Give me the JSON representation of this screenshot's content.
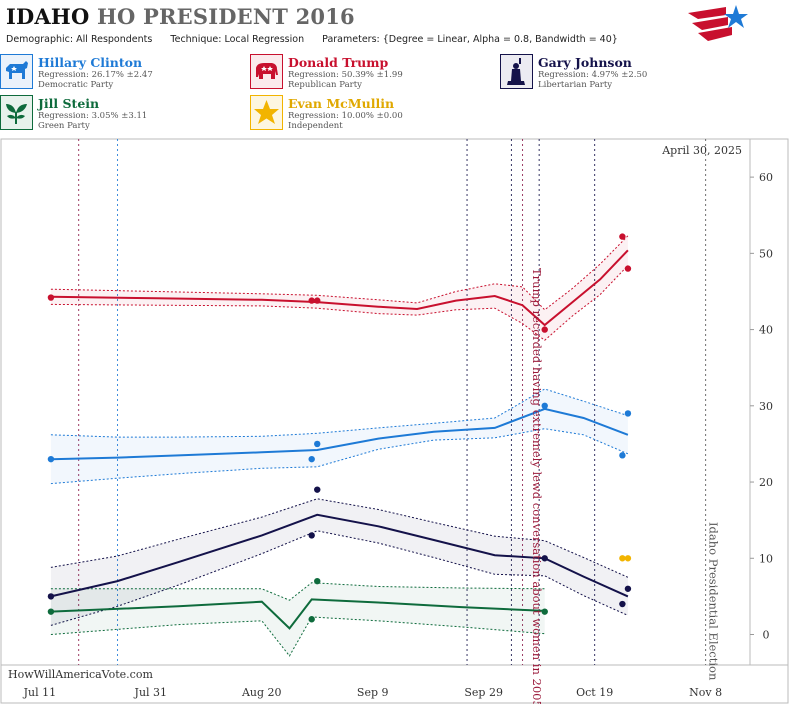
{
  "header": {
    "state": "IDAHO",
    "title_rest": "HO PRESIDENT 2016",
    "demographic_label": "Demographic:",
    "demographic_value": "All Respondents",
    "technique_label": "Technique:",
    "technique_value": "Local Regression",
    "parameters_label": "Parameters:",
    "parameters_value": "{Degree = Linear, Alpha = 0.8, Bandwidth = 40}"
  },
  "candidates": [
    {
      "name": "Hillary Clinton",
      "regression": "Regression: 26.17% ±2.47",
      "party": "Democratic Party",
      "color": "#1e7ad6",
      "icon": "donkey-icon"
    },
    {
      "name": "Donald Trump",
      "regression": "Regression: 50.39% ±1.99",
      "party": "Republican Party",
      "color": "#c8102e",
      "icon": "elephant-icon"
    },
    {
      "name": "Gary Johnson",
      "regression": "Regression: 4.97% ±2.50",
      "party": "Libertarian Party",
      "color": "#14124a",
      "icon": "liberty-statue-icon"
    },
    {
      "name": "Jill Stein",
      "regression": "Regression: 3.05% ±3.11",
      "party": "Green Party",
      "color": "#0e6b3c",
      "icon": "leaf-icon"
    },
    {
      "name": "Evan McMullin",
      "regression": "Regression: 10.00% ±0.00",
      "party": "Independent",
      "color": "#f2b400",
      "icon": "star-icon"
    }
  ],
  "chart_data": {
    "type": "line",
    "date_label": "April 30, 2025",
    "watermark": "HowWillAmericaVote.com",
    "x_ticks": [
      "Jul 11",
      "Jul 31",
      "Aug 20",
      "Sep 9",
      "Sep 29",
      "Oct 19",
      "Nov 8"
    ],
    "x_range": [
      "2016-07-04",
      "2016-11-16"
    ],
    "y_ticks": [
      0,
      10,
      20,
      30,
      40,
      50,
      60
    ],
    "ylim": [
      -4,
      65
    ],
    "annotations": [
      {
        "date": "2016-10-07",
        "text": "Trump recorded having extremely lewd conversation about women in 2005",
        "color": "#9b1b3c"
      },
      {
        "date": "2016-11-08",
        "text": "Idaho Presidential Election",
        "color": "#555555"
      }
    ],
    "event_lines": [
      {
        "date": "2016-07-18",
        "color": "#8b1a4a"
      },
      {
        "date": "2016-07-25",
        "color": "#1e7ad6"
      },
      {
        "date": "2016-09-26",
        "color": "#14124a"
      },
      {
        "date": "2016-10-04",
        "color": "#14124a"
      },
      {
        "date": "2016-10-06",
        "color": "#8b1a4a"
      },
      {
        "date": "2016-10-09",
        "color": "#14124a"
      },
      {
        "date": "2016-10-19",
        "color": "#14124a"
      },
      {
        "date": "2016-11-08",
        "color": "#555555"
      }
    ],
    "series": [
      {
        "name": "Donald Trump",
        "color": "#c8102e",
        "points": [
          [
            "2016-07-13",
            44.2
          ],
          [
            "2016-08-29",
            43.8
          ],
          [
            "2016-08-30",
            43.8
          ],
          [
            "2016-10-10",
            40.0
          ],
          [
            "2016-10-24",
            52.2
          ],
          [
            "2016-10-25",
            48.0
          ]
        ],
        "trend": [
          [
            "2016-07-13",
            44.3
          ],
          [
            "2016-08-01",
            44.1
          ],
          [
            "2016-08-20",
            43.9
          ],
          [
            "2016-08-30",
            43.6
          ],
          [
            "2016-09-10",
            43.0
          ],
          [
            "2016-09-17",
            42.7
          ],
          [
            "2016-09-24",
            43.8
          ],
          [
            "2016-10-01",
            44.4
          ],
          [
            "2016-10-06",
            43.2
          ],
          [
            "2016-10-10",
            40.6
          ],
          [
            "2016-10-15",
            43.6
          ],
          [
            "2016-10-20",
            46.6
          ],
          [
            "2016-10-25",
            50.4
          ]
        ],
        "upper": [
          [
            "2016-07-13",
            45.3
          ],
          [
            "2016-08-01",
            45.0
          ],
          [
            "2016-08-20",
            44.7
          ],
          [
            "2016-08-30",
            44.5
          ],
          [
            "2016-09-10",
            43.9
          ],
          [
            "2016-09-17",
            43.5
          ],
          [
            "2016-09-24",
            45.0
          ],
          [
            "2016-10-01",
            46.0
          ],
          [
            "2016-10-06",
            45.6
          ],
          [
            "2016-10-10",
            42.6
          ],
          [
            "2016-10-15",
            45.4
          ],
          [
            "2016-10-20",
            48.6
          ],
          [
            "2016-10-25",
            52.3
          ]
        ],
        "lower": [
          [
            "2016-07-13",
            43.3
          ],
          [
            "2016-08-01",
            43.2
          ],
          [
            "2016-08-20",
            43.1
          ],
          [
            "2016-08-30",
            42.8
          ],
          [
            "2016-09-10",
            42.1
          ],
          [
            "2016-09-17",
            41.9
          ],
          [
            "2016-09-24",
            42.6
          ],
          [
            "2016-10-01",
            42.8
          ],
          [
            "2016-10-06",
            40.8
          ],
          [
            "2016-10-10",
            38.6
          ],
          [
            "2016-10-15",
            41.8
          ],
          [
            "2016-10-20",
            44.6
          ],
          [
            "2016-10-25",
            48.4
          ]
        ]
      },
      {
        "name": "Hillary Clinton",
        "color": "#1e7ad6",
        "points": [
          [
            "2016-07-13",
            23.0
          ],
          [
            "2016-08-29",
            23.0
          ],
          [
            "2016-08-30",
            25.0
          ],
          [
            "2016-10-10",
            30.0
          ],
          [
            "2016-10-24",
            23.5
          ],
          [
            "2016-10-25",
            29.0
          ]
        ],
        "trend": [
          [
            "2016-07-13",
            23.0
          ],
          [
            "2016-07-25",
            23.2
          ],
          [
            "2016-08-05",
            23.5
          ],
          [
            "2016-08-20",
            23.9
          ],
          [
            "2016-08-30",
            24.2
          ],
          [
            "2016-09-10",
            25.7
          ],
          [
            "2016-09-20",
            26.6
          ],
          [
            "2016-10-01",
            27.1
          ],
          [
            "2016-10-10",
            29.6
          ],
          [
            "2016-10-17",
            28.4
          ],
          [
            "2016-10-25",
            26.2
          ]
        ],
        "upper": [
          [
            "2016-07-13",
            26.2
          ],
          [
            "2016-07-25",
            25.9
          ],
          [
            "2016-08-05",
            25.9
          ],
          [
            "2016-08-20",
            26.0
          ],
          [
            "2016-08-30",
            26.4
          ],
          [
            "2016-09-10",
            27.1
          ],
          [
            "2016-09-20",
            27.7
          ],
          [
            "2016-10-01",
            28.4
          ],
          [
            "2016-10-10",
            32.2
          ],
          [
            "2016-10-17",
            30.6
          ],
          [
            "2016-10-25",
            28.7
          ]
        ],
        "lower": [
          [
            "2016-07-13",
            19.8
          ],
          [
            "2016-07-25",
            20.5
          ],
          [
            "2016-08-05",
            21.1
          ],
          [
            "2016-08-20",
            21.8
          ],
          [
            "2016-08-30",
            22.0
          ],
          [
            "2016-09-10",
            24.3
          ],
          [
            "2016-09-20",
            25.5
          ],
          [
            "2016-10-01",
            25.8
          ],
          [
            "2016-10-10",
            27.0
          ],
          [
            "2016-10-17",
            26.2
          ],
          [
            "2016-10-25",
            23.7
          ]
        ]
      },
      {
        "name": "Gary Johnson",
        "color": "#14124a",
        "points": [
          [
            "2016-07-13",
            5.0
          ],
          [
            "2016-08-29",
            13.0
          ],
          [
            "2016-08-30",
            19.0
          ],
          [
            "2016-10-10",
            10.0
          ],
          [
            "2016-10-24",
            4.0
          ],
          [
            "2016-10-25",
            6.0
          ]
        ],
        "trend": [
          [
            "2016-07-13",
            5.0
          ],
          [
            "2016-07-25",
            7.0
          ],
          [
            "2016-08-05",
            9.5
          ],
          [
            "2016-08-20",
            13.0
          ],
          [
            "2016-08-30",
            15.7
          ],
          [
            "2016-09-10",
            14.2
          ],
          [
            "2016-09-20",
            12.4
          ],
          [
            "2016-10-01",
            10.4
          ],
          [
            "2016-10-10",
            10.0
          ],
          [
            "2016-10-17",
            7.6
          ],
          [
            "2016-10-25",
            5.0
          ]
        ],
        "upper": [
          [
            "2016-07-13",
            8.8
          ],
          [
            "2016-07-25",
            10.3
          ],
          [
            "2016-08-05",
            12.5
          ],
          [
            "2016-08-20",
            15.4
          ],
          [
            "2016-08-30",
            17.8
          ],
          [
            "2016-09-10",
            16.4
          ],
          [
            "2016-09-20",
            14.7
          ],
          [
            "2016-10-01",
            12.9
          ],
          [
            "2016-10-10",
            12.3
          ],
          [
            "2016-10-17",
            10.1
          ],
          [
            "2016-10-25",
            7.5
          ]
        ],
        "lower": [
          [
            "2016-07-13",
            1.2
          ],
          [
            "2016-07-25",
            3.7
          ],
          [
            "2016-08-05",
            6.5
          ],
          [
            "2016-08-20",
            10.6
          ],
          [
            "2016-08-30",
            13.6
          ],
          [
            "2016-09-10",
            12.0
          ],
          [
            "2016-09-20",
            10.1
          ],
          [
            "2016-10-01",
            7.9
          ],
          [
            "2016-10-10",
            7.7
          ],
          [
            "2016-10-17",
            5.1
          ],
          [
            "2016-10-25",
            2.5
          ]
        ]
      },
      {
        "name": "Jill Stein",
        "color": "#0e6b3c",
        "points": [
          [
            "2016-07-13",
            3.0
          ],
          [
            "2016-08-29",
            2.0
          ],
          [
            "2016-08-30",
            7.0
          ],
          [
            "2016-10-10",
            3.0
          ]
        ],
        "trend": [
          [
            "2016-07-13",
            3.0
          ],
          [
            "2016-08-05",
            3.7
          ],
          [
            "2016-08-20",
            4.3
          ],
          [
            "2016-08-25",
            0.8
          ],
          [
            "2016-08-29",
            4.6
          ],
          [
            "2016-09-10",
            4.2
          ],
          [
            "2016-09-25",
            3.6
          ],
          [
            "2016-10-10",
            3.1
          ]
        ],
        "upper": [
          [
            "2016-07-13",
            6.0
          ],
          [
            "2016-08-05",
            6.0
          ],
          [
            "2016-08-20",
            6.0
          ],
          [
            "2016-08-25",
            4.5
          ],
          [
            "2016-08-29",
            6.8
          ],
          [
            "2016-09-10",
            6.3
          ],
          [
            "2016-09-25",
            6.1
          ],
          [
            "2016-10-10",
            6.0
          ]
        ],
        "lower": [
          [
            "2016-07-13",
            0.0
          ],
          [
            "2016-08-05",
            1.3
          ],
          [
            "2016-08-20",
            1.8
          ],
          [
            "2016-08-25",
            -2.8
          ],
          [
            "2016-08-29",
            2.3
          ],
          [
            "2016-09-10",
            1.8
          ],
          [
            "2016-09-25",
            1.0
          ],
          [
            "2016-10-10",
            0.1
          ]
        ]
      },
      {
        "name": "Evan McMullin",
        "color": "#f2b400",
        "points": [
          [
            "2016-10-24",
            10.0
          ],
          [
            "2016-10-25",
            10.0
          ]
        ],
        "trend": [],
        "upper": [],
        "lower": []
      }
    ]
  }
}
